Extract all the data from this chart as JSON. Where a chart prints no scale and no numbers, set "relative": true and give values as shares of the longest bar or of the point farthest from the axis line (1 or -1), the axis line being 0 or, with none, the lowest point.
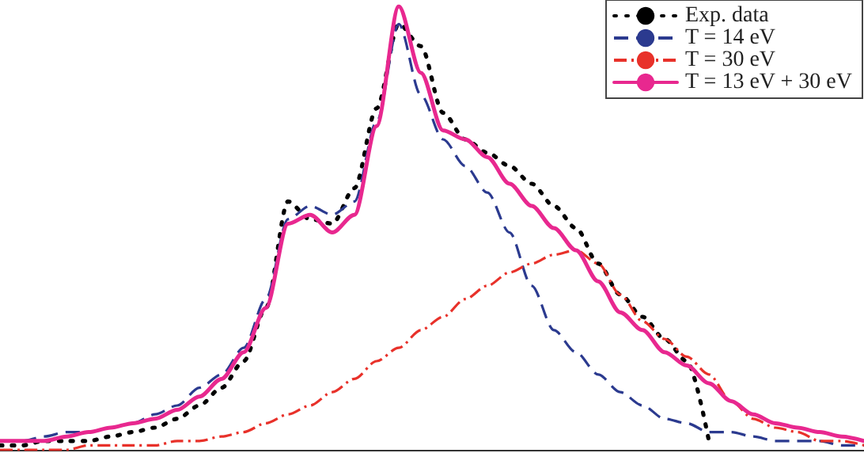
{
  "chart_data": {
    "type": "line",
    "relative": true,
    "grid": false,
    "legend": "top right",
    "marker": "none",
    "categories": [
      null,
      null,
      null,
      null,
      null,
      null,
      null,
      null,
      null,
      null,
      null,
      null,
      null,
      null,
      null,
      null,
      null,
      null,
      null,
      null,
      null,
      null,
      null,
      null,
      null,
      null,
      null,
      null,
      null,
      null,
      null,
      null,
      null,
      null,
      null,
      null,
      null,
      null,
      null,
      null
    ],
    "series": [
      {
        "name": "Exp. data",
        "color": "#000000",
        "line_style": "dotted",
        "values": [
          0.01,
          0.01,
          0.02,
          0.02,
          0.02,
          0.03,
          0.04,
          0.05,
          0.07,
          0.1,
          0.14,
          0.2,
          0.32,
          0.56,
          0.52,
          0.51,
          0.59,
          0.77,
          0.96,
          0.91,
          0.76,
          0.7,
          0.67,
          0.64,
          0.6,
          0.55,
          0.5,
          0.42,
          0.35,
          0.3,
          0.25,
          0.2,
          0.02,
          null,
          null,
          null,
          null,
          null,
          null,
          null
        ]
      },
      {
        "name": "T = 14 eV",
        "color": "#2b3a8f",
        "line_style": "dashed",
        "values": [
          0.02,
          0.02,
          0.03,
          0.04,
          0.04,
          0.05,
          0.06,
          0.08,
          0.1,
          0.14,
          0.17,
          0.23,
          0.34,
          0.52,
          0.55,
          0.53,
          0.56,
          0.74,
          0.96,
          0.8,
          0.7,
          0.64,
          0.58,
          0.49,
          0.37,
          0.27,
          0.22,
          0.17,
          0.13,
          0.1,
          0.07,
          0.06,
          0.04,
          0.04,
          0.03,
          0.02,
          0.02,
          0.02,
          0.01,
          0.01
        ]
      },
      {
        "name": "T = 30 eV",
        "color": "#e8312a",
        "line_style": "dashdot",
        "values": [
          0,
          0,
          0,
          0,
          0.01,
          0.01,
          0.01,
          0.01,
          0.02,
          0.02,
          0.03,
          0.04,
          0.06,
          0.08,
          0.1,
          0.13,
          0.16,
          0.2,
          0.23,
          0.27,
          0.3,
          0.34,
          0.37,
          0.4,
          0.42,
          0.44,
          0.45,
          0.42,
          0.35,
          0.29,
          0.25,
          0.21,
          0.17,
          0.11,
          0.07,
          0.05,
          0.04,
          0.02,
          0.02,
          0.01
        ]
      },
      {
        "name": "T = 13 eV + 30 eV",
        "color": "#e8288f",
        "line_style": "solid",
        "values": [
          0.02,
          0.02,
          0.02,
          0.03,
          0.04,
          0.05,
          0.06,
          0.07,
          0.09,
          0.12,
          0.16,
          0.22,
          0.32,
          0.51,
          0.53,
          0.49,
          0.53,
          0.73,
          1,
          0.85,
          0.72,
          0.7,
          0.66,
          0.6,
          0.55,
          0.5,
          0.45,
          0.38,
          0.31,
          0.27,
          0.22,
          0.19,
          0.15,
          0.11,
          0.08,
          0.06,
          0.05,
          0.04,
          0.03,
          0.02
        ]
      }
    ]
  }
}
